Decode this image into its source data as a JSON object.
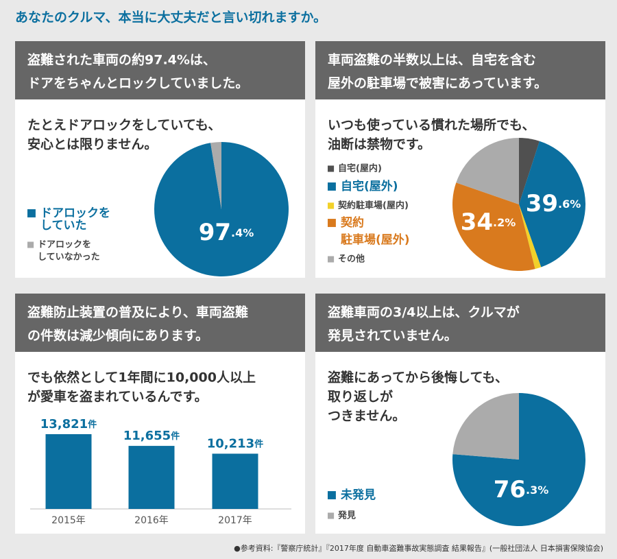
{
  "title": "あなたのクルマ、本当に大丈夫だと言い切れますか。",
  "source": "●参考資料:『警察庁統計』『2017年度 自動車盗難事故実態調査 結果報告』(一般社団法人 日本損害保険協会)",
  "chart_data": [
    {
      "type": "pie",
      "title": [
        "盗難された車両の約97.4%は、",
        "ドアをちゃんとロックしていました。"
      ],
      "subtitle": [
        "たとえドアロックをしていても、",
        "安心とは限りません。"
      ],
      "categories": [
        [
          "ドアロックを",
          "していた"
        ],
        [
          "ドアロックを",
          "していなかった"
        ]
      ],
      "values": [
        97.4,
        2.6
      ],
      "value_labels": [
        "97.4%",
        null
      ],
      "colors": [
        "#0b6f9f",
        "#ababab"
      ]
    },
    {
      "type": "pie",
      "title": [
        "車両盗難の半数以上は、自宅を含む",
        "屋外の駐車場で被害にあっています。"
      ],
      "subtitle": [
        "いつも使っている慣れた場所でも、",
        "油断は禁物です。"
      ],
      "categories": [
        [
          "自宅(屋内)"
        ],
        [
          "自宅(屋外)"
        ],
        [
          "契約駐車場(屋内)"
        ],
        [
          "契約",
          "駐車場(屋外)"
        ],
        [
          "その他"
        ]
      ],
      "values": [
        5,
        39.6,
        1.5,
        34.2,
        19.7
      ],
      "value_labels": [
        null,
        "39.6%",
        null,
        "34.2%",
        null
      ],
      "colors": [
        "#505050",
        "#0b6f9f",
        "#f2d12a",
        "#d97a1e",
        "#ababab"
      ]
    },
    {
      "type": "bar",
      "title": [
        "盗難防止装置の普及により、車両盗難",
        "の件数は減少傾向にあります。"
      ],
      "subtitle": [
        "でも依然として1年間に10,000人以上",
        "が愛車を盗まれているんです。"
      ],
      "categories": [
        "2015年",
        "2016年",
        "2017年"
      ],
      "values": [
        13821,
        11655,
        10213
      ],
      "value_labels": [
        "13,821件",
        "11,655件",
        "10,213件"
      ],
      "color": "#0b6f9f"
    },
    {
      "type": "pie",
      "title": [
        "盗難車両の3/4以上は、クルマが",
        "発見されていません。"
      ],
      "subtitle": [
        "盗難にあってから後悔しても、",
        "取り返しが",
        "つきません。"
      ],
      "categories": [
        [
          "未発見"
        ],
        [
          "発見"
        ]
      ],
      "values": [
        76.3,
        23.7
      ],
      "value_labels": [
        "76.3%",
        null
      ],
      "colors": [
        "#0b6f9f",
        "#ababab"
      ]
    }
  ]
}
